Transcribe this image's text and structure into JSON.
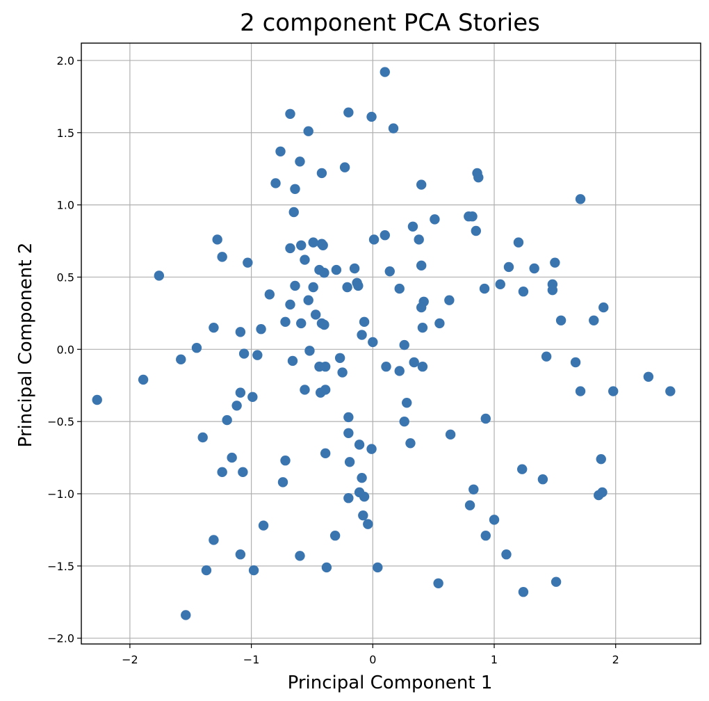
{
  "chart_data": {
    "type": "scatter",
    "title": "2 component PCA Stories",
    "xlabel": "Principal Component 1",
    "ylabel": "Principal Component 2",
    "xlim": [
      -2.4,
      2.7
    ],
    "ylim": [
      -2.04,
      2.12
    ],
    "xticks": [
      -2,
      -1,
      0,
      1,
      2
    ],
    "yticks": [
      -2.0,
      -1.5,
      -1.0,
      -0.5,
      0.0,
      0.5,
      1.0,
      1.5,
      2.0
    ],
    "xtick_labels": [
      "−2",
      "−1",
      "0",
      "1",
      "2"
    ],
    "ytick_labels": [
      "−2.0",
      "−1.5",
      "−1.0",
      "−0.5",
      "0.0",
      "0.5",
      "1.0",
      "1.5",
      "2.0"
    ],
    "grid": true,
    "marker_color": "#3a75b0",
    "points": [
      [
        0.1,
        1.92
      ],
      [
        -0.68,
        1.63
      ],
      [
        -0.2,
        1.64
      ],
      [
        -0.01,
        1.61
      ],
      [
        0.17,
        1.53
      ],
      [
        -0.53,
        1.51
      ],
      [
        -0.76,
        1.37
      ],
      [
        -0.6,
        1.3
      ],
      [
        -0.23,
        1.26
      ],
      [
        -0.42,
        1.22
      ],
      [
        0.86,
        1.22
      ],
      [
        0.87,
        1.19
      ],
      [
        -0.8,
        1.15
      ],
      [
        -0.64,
        1.11
      ],
      [
        0.4,
        1.14
      ],
      [
        1.71,
        1.04
      ],
      [
        -0.65,
        0.95
      ],
      [
        0.79,
        0.92
      ],
      [
        0.82,
        0.92
      ],
      [
        0.51,
        0.9
      ],
      [
        0.33,
        0.85
      ],
      [
        0.85,
        0.82
      ],
      [
        0.1,
        0.79
      ],
      [
        -1.28,
        0.76
      ],
      [
        0.01,
        0.76
      ],
      [
        0.38,
        0.76
      ],
      [
        1.2,
        0.74
      ],
      [
        -0.49,
        0.74
      ],
      [
        -0.42,
        0.73
      ],
      [
        -0.59,
        0.72
      ],
      [
        -0.68,
        0.7
      ],
      [
        -0.41,
        0.72
      ],
      [
        -1.24,
        0.64
      ],
      [
        -0.56,
        0.62
      ],
      [
        -1.03,
        0.6
      ],
      [
        1.5,
        0.6
      ],
      [
        1.12,
        0.57
      ],
      [
        0.4,
        0.58
      ],
      [
        1.33,
        0.56
      ],
      [
        -0.15,
        0.56
      ],
      [
        -0.3,
        0.55
      ],
      [
        -0.44,
        0.55
      ],
      [
        -0.4,
        0.53
      ],
      [
        0.14,
        0.54
      ],
      [
        -1.76,
        0.51
      ],
      [
        1.48,
        0.45
      ],
      [
        1.05,
        0.45
      ],
      [
        -0.64,
        0.44
      ],
      [
        -0.49,
        0.43
      ],
      [
        -0.21,
        0.43
      ],
      [
        -0.12,
        0.44
      ],
      [
        -0.13,
        0.46
      ],
      [
        0.92,
        0.42
      ],
      [
        1.24,
        0.4
      ],
      [
        1.48,
        0.41
      ],
      [
        0.22,
        0.42
      ],
      [
        -0.85,
        0.38
      ],
      [
        -0.53,
        0.34
      ],
      [
        0.42,
        0.33
      ],
      [
        0.63,
        0.34
      ],
      [
        -0.68,
        0.31
      ],
      [
        0.4,
        0.29
      ],
      [
        1.9,
        0.29
      ],
      [
        -0.47,
        0.24
      ],
      [
        1.55,
        0.2
      ],
      [
        1.82,
        0.2
      ],
      [
        -0.72,
        0.19
      ],
      [
        -0.59,
        0.18
      ],
      [
        -0.42,
        0.18
      ],
      [
        -0.4,
        0.17
      ],
      [
        -0.07,
        0.19
      ],
      [
        0.55,
        0.18
      ],
      [
        -1.31,
        0.15
      ],
      [
        -1.09,
        0.12
      ],
      [
        -0.92,
        0.14
      ],
      [
        0.41,
        0.15
      ],
      [
        -0.09,
        0.1
      ],
      [
        0.0,
        0.05
      ],
      [
        0.26,
        0.03
      ],
      [
        -1.45,
        0.01
      ],
      [
        -0.52,
        -0.01
      ],
      [
        -1.06,
        -0.03
      ],
      [
        -0.95,
        -0.04
      ],
      [
        -1.58,
        -0.07
      ],
      [
        -0.66,
        -0.08
      ],
      [
        -0.27,
        -0.06
      ],
      [
        0.34,
        -0.09
      ],
      [
        1.67,
        -0.09
      ],
      [
        1.43,
        -0.05
      ],
      [
        -0.44,
        -0.12
      ],
      [
        -0.39,
        -0.12
      ],
      [
        0.11,
        -0.12
      ],
      [
        0.41,
        -0.12
      ],
      [
        0.22,
        -0.15
      ],
      [
        -0.25,
        -0.16
      ],
      [
        -1.89,
        -0.21
      ],
      [
        -0.56,
        -0.28
      ],
      [
        -0.39,
        -0.28
      ],
      [
        -0.43,
        -0.3
      ],
      [
        -1.09,
        -0.3
      ],
      [
        -0.99,
        -0.33
      ],
      [
        1.71,
        -0.29
      ],
      [
        1.98,
        -0.29
      ],
      [
        2.27,
        -0.19
      ],
      [
        2.45,
        -0.29
      ],
      [
        -2.27,
        -0.35
      ],
      [
        -1.12,
        -0.39
      ],
      [
        0.28,
        -0.37
      ],
      [
        -1.2,
        -0.49
      ],
      [
        -0.2,
        -0.47
      ],
      [
        0.26,
        -0.5
      ],
      [
        0.93,
        -0.48
      ],
      [
        -1.4,
        -0.61
      ],
      [
        -0.2,
        -0.58
      ],
      [
        0.64,
        -0.59
      ],
      [
        -0.11,
        -0.66
      ],
      [
        0.31,
        -0.65
      ],
      [
        -0.01,
        -0.69
      ],
      [
        -0.39,
        -0.72
      ],
      [
        -1.16,
        -0.75
      ],
      [
        -0.72,
        -0.77
      ],
      [
        -0.19,
        -0.78
      ],
      [
        1.88,
        -0.76
      ],
      [
        -1.24,
        -0.85
      ],
      [
        -1.07,
        -0.85
      ],
      [
        1.23,
        -0.83
      ],
      [
        -0.09,
        -0.89
      ],
      [
        -0.74,
        -0.92
      ],
      [
        1.4,
        -0.9
      ],
      [
        0.83,
        -0.97
      ],
      [
        -0.11,
        -0.99
      ],
      [
        -0.07,
        -1.02
      ],
      [
        -0.2,
        -1.03
      ],
      [
        1.86,
        -1.01
      ],
      [
        1.89,
        -0.99
      ],
      [
        0.8,
        -1.08
      ],
      [
        -0.08,
        -1.15
      ],
      [
        1.0,
        -1.18
      ],
      [
        -0.04,
        -1.21
      ],
      [
        -0.9,
        -1.22
      ],
      [
        -0.31,
        -1.29
      ],
      [
        0.93,
        -1.29
      ],
      [
        -1.31,
        -1.32
      ],
      [
        -1.09,
        -1.42
      ],
      [
        -0.6,
        -1.43
      ],
      [
        1.1,
        -1.42
      ],
      [
        -1.37,
        -1.53
      ],
      [
        -0.98,
        -1.53
      ],
      [
        -0.38,
        -1.51
      ],
      [
        0.04,
        -1.51
      ],
      [
        0.54,
        -1.62
      ],
      [
        1.51,
        -1.61
      ],
      [
        1.24,
        -1.68
      ],
      [
        -1.54,
        -1.84
      ]
    ]
  }
}
